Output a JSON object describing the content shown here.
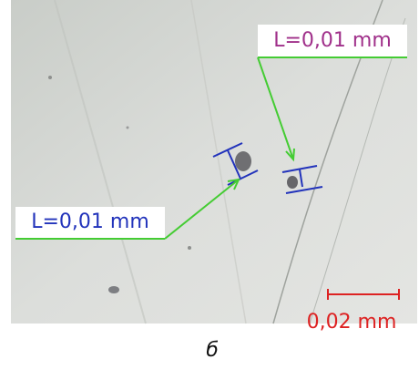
{
  "annotations": {
    "top_label": "L=0,01 mm",
    "left_label": "L=0,01 mm"
  },
  "scale_bar": {
    "label": "0,02 mm"
  },
  "caption": "б"
}
